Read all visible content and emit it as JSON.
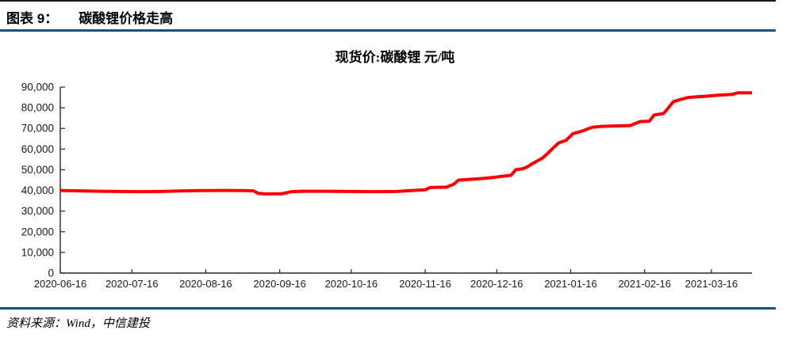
{
  "header": {
    "figure_label": "图表 9：",
    "figure_title": "碳酸锂价格走高"
  },
  "source": {
    "label": "资料来源：",
    "text": "Wind，中信建投"
  },
  "colors": {
    "rule_blue": "#175481",
    "top_rule": "#1a1a1a",
    "line_red": "#fe0000",
    "axis": "#262626",
    "label_text": "#1a1a1a"
  },
  "chart_data": {
    "type": "line",
    "title": "现货价:碳酸锂 元/吨",
    "xlabel": "",
    "ylabel": "",
    "grid": false,
    "legend": "none",
    "ylim": [
      0,
      90000
    ],
    "y_tick_step": 10000,
    "y_ticks": [
      0,
      10000,
      20000,
      30000,
      40000,
      50000,
      60000,
      70000,
      80000,
      90000
    ],
    "y_tick_labels": [
      "0",
      "10,000",
      "20,000",
      "30,000",
      "40,000",
      "50,000",
      "60,000",
      "70,000",
      "80,000",
      "90,000"
    ],
    "x_range": [
      "2020-06-16",
      "2021-04-02"
    ],
    "x_tick_labels": [
      "2020-06-16",
      "2020-07-16",
      "2020-08-16",
      "2020-09-16",
      "2020-10-16",
      "2020-11-16",
      "2020-12-16",
      "2021-01-16",
      "2021-02-16",
      "2021-03-16"
    ],
    "series": [
      {
        "name": "现货价:碳酸锂 元/吨",
        "color": "#fe0000",
        "points": [
          {
            "date": "2020-06-16",
            "value": 40000
          },
          {
            "date": "2020-06-24",
            "value": 39800
          },
          {
            "date": "2020-07-03",
            "value": 39600
          },
          {
            "date": "2020-07-10",
            "value": 39500
          },
          {
            "date": "2020-07-20",
            "value": 39400
          },
          {
            "date": "2020-07-28",
            "value": 39500
          },
          {
            "date": "2020-08-05",
            "value": 39700
          },
          {
            "date": "2020-08-14",
            "value": 39900
          },
          {
            "date": "2020-08-24",
            "value": 40000
          },
          {
            "date": "2020-09-01",
            "value": 39900
          },
          {
            "date": "2020-09-05",
            "value": 39800
          },
          {
            "date": "2020-09-07",
            "value": 38600
          },
          {
            "date": "2020-09-10",
            "value": 38300
          },
          {
            "date": "2020-09-17",
            "value": 38400
          },
          {
            "date": "2020-09-21",
            "value": 39400
          },
          {
            "date": "2020-09-25",
            "value": 39600
          },
          {
            "date": "2020-10-05",
            "value": 39600
          },
          {
            "date": "2020-10-15",
            "value": 39500
          },
          {
            "date": "2020-10-26",
            "value": 39400
          },
          {
            "date": "2020-11-04",
            "value": 39500
          },
          {
            "date": "2020-11-10",
            "value": 39900
          },
          {
            "date": "2020-11-16",
            "value": 40300
          },
          {
            "date": "2020-11-18",
            "value": 41400
          },
          {
            "date": "2020-11-25",
            "value": 41600
          },
          {
            "date": "2020-11-28",
            "value": 43000
          },
          {
            "date": "2020-11-30",
            "value": 45000
          },
          {
            "date": "2020-12-04",
            "value": 45300
          },
          {
            "date": "2020-12-09",
            "value": 45700
          },
          {
            "date": "2020-12-14",
            "value": 46200
          },
          {
            "date": "2020-12-18",
            "value": 46800
          },
          {
            "date": "2020-12-22",
            "value": 47300
          },
          {
            "date": "2020-12-24",
            "value": 50000
          },
          {
            "date": "2020-12-27",
            "value": 50500
          },
          {
            "date": "2020-12-29",
            "value": 51500
          },
          {
            "date": "2020-12-31",
            "value": 53000
          },
          {
            "date": "2021-01-04",
            "value": 55500
          },
          {
            "date": "2021-01-06",
            "value": 57500
          },
          {
            "date": "2021-01-08",
            "value": 59800
          },
          {
            "date": "2021-01-11",
            "value": 63000
          },
          {
            "date": "2021-01-14",
            "value": 64200
          },
          {
            "date": "2021-01-17",
            "value": 67500
          },
          {
            "date": "2021-01-21",
            "value": 68800
          },
          {
            "date": "2021-01-25",
            "value": 70500
          },
          {
            "date": "2021-01-29",
            "value": 71000
          },
          {
            "date": "2021-02-04",
            "value": 71200
          },
          {
            "date": "2021-02-10",
            "value": 71400
          },
          {
            "date": "2021-02-14",
            "value": 73300
          },
          {
            "date": "2021-02-18",
            "value": 73500
          },
          {
            "date": "2021-02-20",
            "value": 76500
          },
          {
            "date": "2021-02-24",
            "value": 77200
          },
          {
            "date": "2021-02-26",
            "value": 80000
          },
          {
            "date": "2021-02-28",
            "value": 82900
          },
          {
            "date": "2021-03-03",
            "value": 84000
          },
          {
            "date": "2021-03-06",
            "value": 84900
          },
          {
            "date": "2021-03-10",
            "value": 85300
          },
          {
            "date": "2021-03-14",
            "value": 85600
          },
          {
            "date": "2021-03-18",
            "value": 86000
          },
          {
            "date": "2021-03-22",
            "value": 86300
          },
          {
            "date": "2021-03-25",
            "value": 86500
          },
          {
            "date": "2021-03-27",
            "value": 87200
          },
          {
            "date": "2021-04-02",
            "value": 87200
          }
        ]
      }
    ]
  }
}
